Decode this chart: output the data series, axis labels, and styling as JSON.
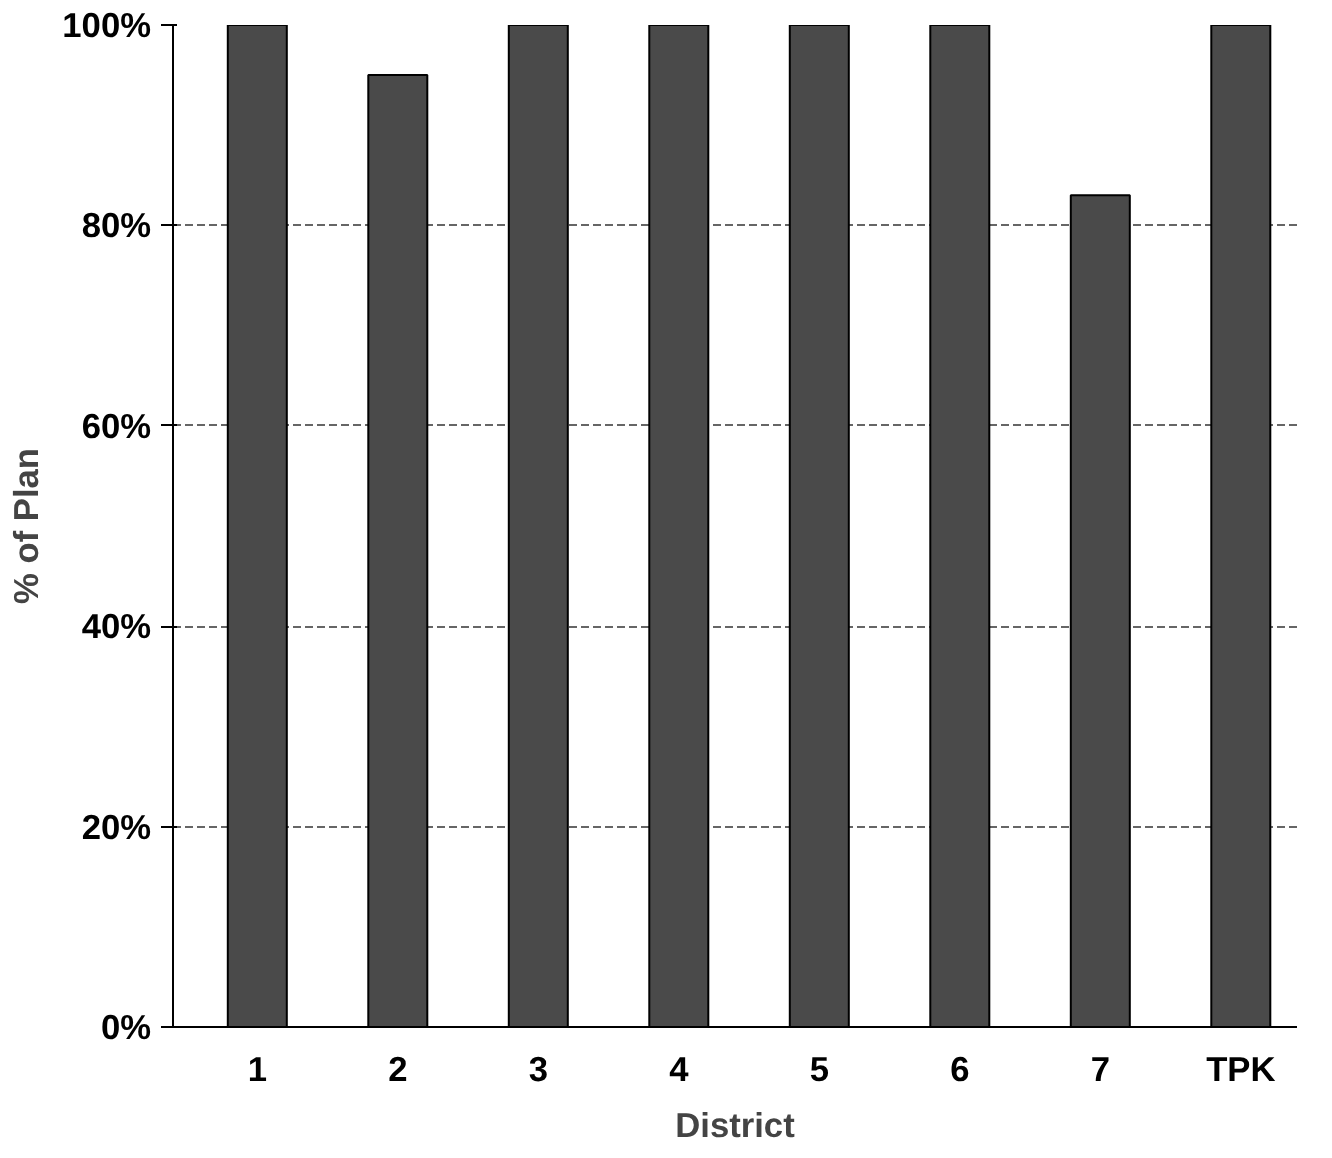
{
  "chart_data": {
    "type": "bar",
    "xlabel": "District",
    "ylabel": "% of Plan",
    "categories": [
      "1",
      "2",
      "3",
      "4",
      "5",
      "6",
      "7",
      "TPK"
    ],
    "values": [
      100,
      95,
      100,
      100,
      100,
      100,
      83,
      100
    ],
    "color": "#4a4a4a",
    "ylim": [
      0,
      100
    ],
    "yticks": [
      {
        "value": 0,
        "label": "0%"
      },
      {
        "value": 20,
        "label": "20%"
      },
      {
        "value": 40,
        "label": "40%"
      },
      {
        "value": 60,
        "label": "60%"
      },
      {
        "value": 80,
        "label": "80%"
      },
      {
        "value": 100,
        "label": "100%"
      }
    ],
    "grid": "y"
  }
}
